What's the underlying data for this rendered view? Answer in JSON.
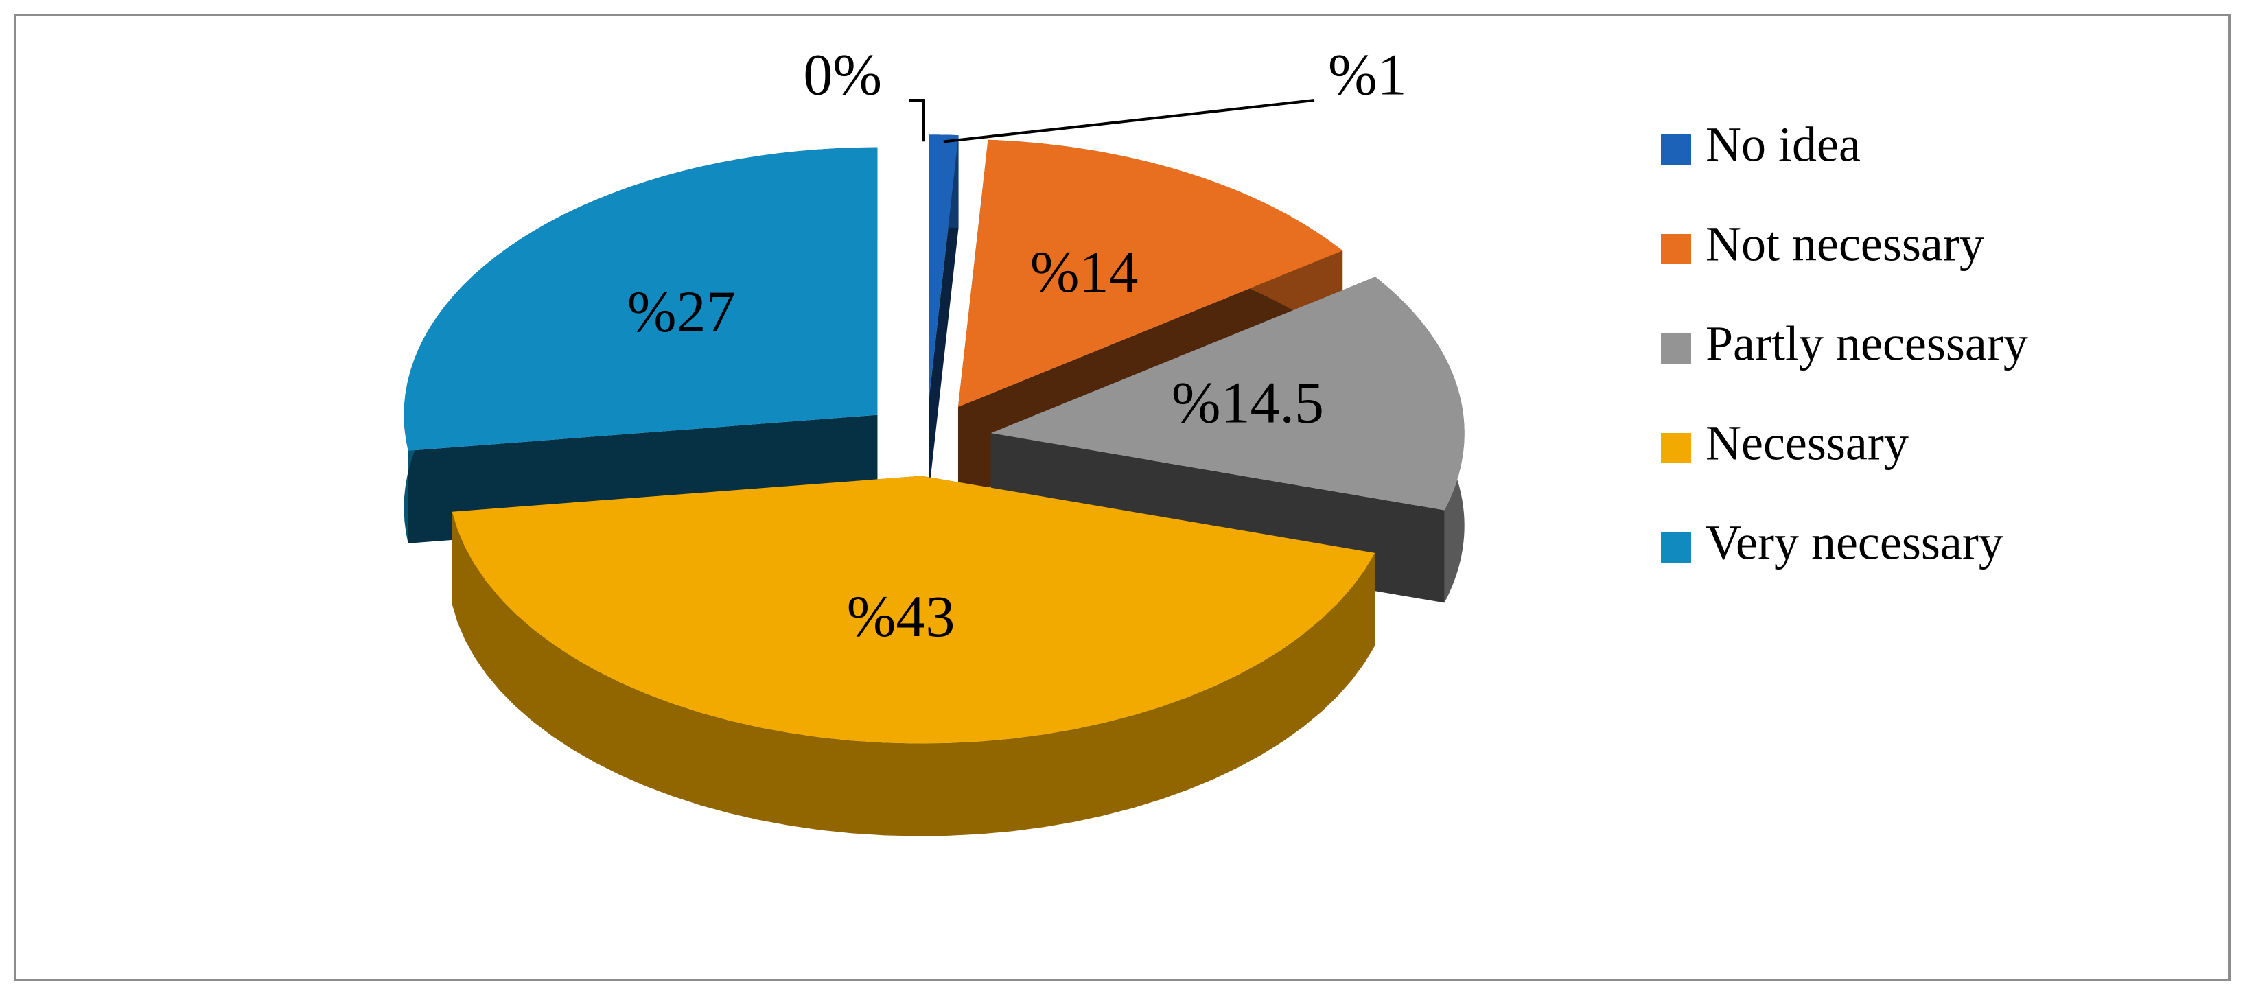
{
  "chart_data": {
    "type": "pie",
    "categories": [
      "No idea",
      "Not necessary",
      "Partly necessary",
      "Necessary",
      "Very necessary",
      null
    ],
    "values": [
      1,
      14,
      14.5,
      43,
      27,
      0
    ],
    "value_labels": [
      "%1",
      "%14",
      "%14.5",
      "%43",
      "%27",
      "0%"
    ],
    "colors": [
      "#1c62b8",
      "#e86f1f",
      "#949494",
      "#f2a900",
      "#118ac0",
      "#1c62b8"
    ],
    "legend": "right",
    "three_d": true,
    "exploded": true
  }
}
